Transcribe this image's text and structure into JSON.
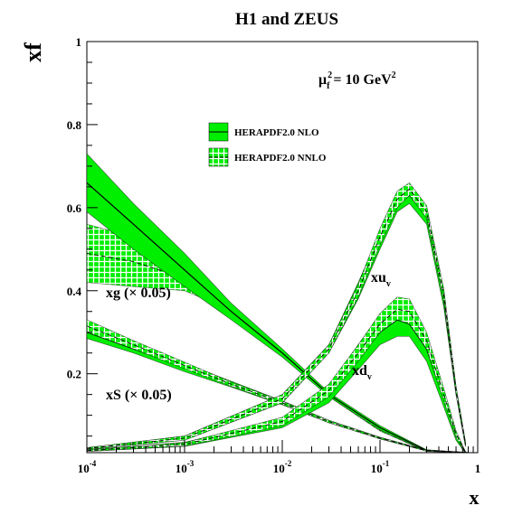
{
  "chart_data": {
    "type": "line",
    "title": "H1 and ZEUS",
    "xlabel": "x",
    "ylabel": "xf",
    "x_scale": "log",
    "xlim": [
      0.0001,
      1
    ],
    "ylim": [
      0.01,
      1
    ],
    "x_ticks": [
      {
        "value": 0.0001,
        "base": "10",
        "exp": "-4"
      },
      {
        "value": 0.001,
        "base": "10",
        "exp": "-3"
      },
      {
        "value": 0.01,
        "base": "10",
        "exp": "-2"
      },
      {
        "value": 0.1,
        "base": "10",
        "exp": "-1"
      },
      {
        "value": 1,
        "base": "1",
        "exp": ""
      }
    ],
    "y_ticks": [
      {
        "value": 0.2,
        "label": "0.2"
      },
      {
        "value": 0.4,
        "label": "0.4"
      },
      {
        "value": 0.6,
        "label": "0.6"
      },
      {
        "value": 0.8,
        "label": "0.8"
      },
      {
        "value": 1.0,
        "label": "1"
      }
    ],
    "scale_annotation": {
      "base": "μ",
      "sup": "2",
      "sub": "f",
      "rest": " = 10 GeV",
      "rest_sup": "2"
    },
    "legend": {
      "placement": "upper-center",
      "entries": [
        {
          "label": "HERAPDF2.0 NLO",
          "style": "solid-band"
        },
        {
          "label": "HERAPDF2.0 NNLO",
          "style": "hatched-band"
        }
      ]
    },
    "colors": {
      "band": "#00ee00",
      "hatch": "#ffffff",
      "line": "#000000"
    },
    "curve_labels": {
      "xuv": {
        "base": "xu",
        "sub": "v"
      },
      "xdv": {
        "base": "xd",
        "sub": "v"
      },
      "xg": "xg (× 0.05)",
      "xS": "xS (× 0.05)"
    },
    "series": [
      {
        "key": "xg_nlo",
        "set": "NLO",
        "x": [
          0.0001,
          0.0003,
          0.001,
          0.003,
          0.01,
          0.03,
          0.1,
          0.3,
          0.8
        ],
        "central": [
          0.66,
          0.56,
          0.45,
          0.35,
          0.25,
          0.15,
          0.07,
          0.015,
          0.01
        ],
        "lower": [
          0.59,
          0.5,
          0.41,
          0.33,
          0.24,
          0.145,
          0.065,
          0.013,
          0.01
        ],
        "upper": [
          0.73,
          0.61,
          0.49,
          0.37,
          0.26,
          0.155,
          0.075,
          0.017,
          0.01
        ]
      },
      {
        "key": "xg_nnlo",
        "set": "NNLO",
        "x": [
          0.0001,
          0.0003,
          0.001,
          0.002,
          0.003,
          0.01,
          0.03,
          0.1,
          0.3,
          0.8
        ],
        "central": [
          0.49,
          0.47,
          0.43,
          0.38,
          0.35,
          0.25,
          0.15,
          0.065,
          0.015,
          0.01
        ],
        "lower": [
          0.42,
          0.41,
          0.4,
          0.37,
          0.34,
          0.245,
          0.145,
          0.062,
          0.013,
          0.01
        ],
        "upper": [
          0.56,
          0.53,
          0.46,
          0.4,
          0.36,
          0.255,
          0.155,
          0.068,
          0.017,
          0.01
        ]
      },
      {
        "key": "xs_nlo",
        "set": "NLO",
        "x": [
          0.0001,
          0.0003,
          0.001,
          0.003,
          0.01,
          0.03,
          0.1,
          0.3,
          0.8
        ],
        "central": [
          0.3,
          0.26,
          0.215,
          0.175,
          0.13,
          0.085,
          0.045,
          0.015,
          0.01
        ],
        "lower": [
          0.285,
          0.25,
          0.205,
          0.168,
          0.125,
          0.082,
          0.043,
          0.014,
          0.01
        ],
        "upper": [
          0.315,
          0.27,
          0.225,
          0.182,
          0.135,
          0.088,
          0.047,
          0.016,
          0.01
        ]
      },
      {
        "key": "xs_nnlo",
        "set": "NNLO",
        "x": [
          0.0001,
          0.0003,
          0.001,
          0.003,
          0.01,
          0.03,
          0.1,
          0.3,
          0.8
        ],
        "central": [
          0.315,
          0.27,
          0.22,
          0.175,
          0.13,
          0.085,
          0.045,
          0.015,
          0.01
        ],
        "lower": [
          0.3,
          0.26,
          0.212,
          0.17,
          0.126,
          0.082,
          0.043,
          0.014,
          0.01
        ],
        "upper": [
          0.33,
          0.28,
          0.228,
          0.18,
          0.134,
          0.088,
          0.047,
          0.016,
          0.01
        ]
      },
      {
        "key": "xuv_nlo",
        "set": "NLO",
        "x": [
          0.0001,
          0.001,
          0.01,
          0.03,
          0.06,
          0.1,
          0.15,
          0.2,
          0.3,
          0.45,
          0.6,
          0.75
        ],
        "central": [
          0.02,
          0.045,
          0.14,
          0.26,
          0.4,
          0.52,
          0.61,
          0.63,
          0.58,
          0.38,
          0.16,
          0.03
        ],
        "lower": [
          0.018,
          0.04,
          0.13,
          0.25,
          0.38,
          0.5,
          0.59,
          0.61,
          0.56,
          0.36,
          0.15,
          0.025
        ],
        "upper": [
          0.022,
          0.05,
          0.15,
          0.27,
          0.42,
          0.54,
          0.63,
          0.65,
          0.6,
          0.4,
          0.17,
          0.035
        ]
      },
      {
        "key": "xuv_nnlo",
        "set": "NNLO",
        "x": [
          0.0001,
          0.001,
          0.01,
          0.03,
          0.06,
          0.1,
          0.15,
          0.2,
          0.3,
          0.45,
          0.6,
          0.75
        ],
        "central": [
          0.02,
          0.045,
          0.14,
          0.26,
          0.4,
          0.53,
          0.62,
          0.645,
          0.59,
          0.39,
          0.16,
          0.03
        ],
        "lower": [
          0.018,
          0.04,
          0.13,
          0.25,
          0.385,
          0.51,
          0.6,
          0.63,
          0.575,
          0.375,
          0.15,
          0.025
        ],
        "upper": [
          0.022,
          0.05,
          0.15,
          0.27,
          0.415,
          0.55,
          0.64,
          0.66,
          0.605,
          0.405,
          0.17,
          0.035
        ]
      },
      {
        "key": "xdv_nlo",
        "set": "NLO",
        "x": [
          0.0001,
          0.001,
          0.01,
          0.03,
          0.06,
          0.1,
          0.15,
          0.2,
          0.3,
          0.45,
          0.6,
          0.75
        ],
        "central": [
          0.015,
          0.03,
          0.08,
          0.15,
          0.24,
          0.3,
          0.33,
          0.32,
          0.26,
          0.14,
          0.05,
          0.01
        ],
        "lower": [
          0.013,
          0.025,
          0.07,
          0.13,
          0.21,
          0.27,
          0.29,
          0.29,
          0.23,
          0.12,
          0.04,
          0.008
        ],
        "upper": [
          0.017,
          0.035,
          0.09,
          0.17,
          0.27,
          0.34,
          0.37,
          0.36,
          0.29,
          0.16,
          0.06,
          0.012
        ]
      },
      {
        "key": "xdv_nnlo",
        "set": "NNLO",
        "x": [
          0.0001,
          0.001,
          0.01,
          0.03,
          0.06,
          0.1,
          0.15,
          0.2,
          0.3,
          0.45,
          0.6,
          0.75
        ],
        "central": [
          0.015,
          0.03,
          0.085,
          0.16,
          0.25,
          0.32,
          0.355,
          0.35,
          0.28,
          0.15,
          0.055,
          0.01
        ],
        "lower": [
          0.013,
          0.026,
          0.075,
          0.145,
          0.23,
          0.3,
          0.33,
          0.32,
          0.26,
          0.135,
          0.047,
          0.008
        ],
        "upper": [
          0.017,
          0.034,
          0.095,
          0.175,
          0.27,
          0.345,
          0.385,
          0.38,
          0.3,
          0.165,
          0.063,
          0.012
        ]
      }
    ]
  }
}
